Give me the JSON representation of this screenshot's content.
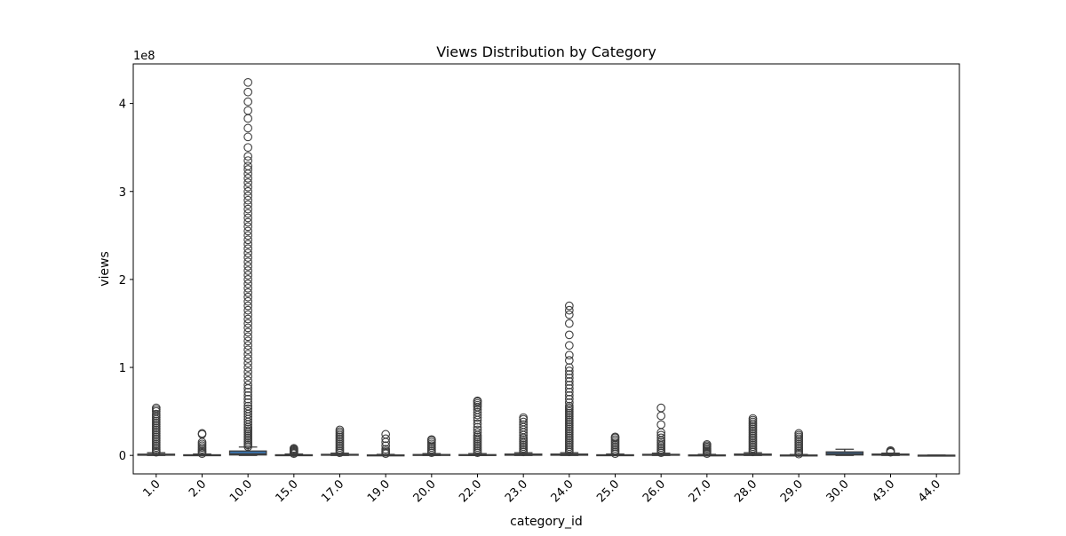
{
  "chart_data": {
    "type": "boxplot",
    "title": "Views Distribution by Category",
    "xlabel": "category_id",
    "ylabel": "views",
    "y_offset_label": "1e8",
    "y_scale": 100000000,
    "ylim": [
      -21000000,
      445000000
    ],
    "yticks": [
      0,
      100000000,
      200000000,
      300000000,
      400000000
    ],
    "ytick_labels": [
      "0",
      "1",
      "2",
      "3",
      "4"
    ],
    "grid": false,
    "legend": "none",
    "box_color": "#3a75b0",
    "categories": [
      "1.0",
      "2.0",
      "10.0",
      "15.0",
      "17.0",
      "19.0",
      "20.0",
      "22.0",
      "23.0",
      "24.0",
      "25.0",
      "26.0",
      "27.0",
      "28.0",
      "29.0",
      "30.0",
      "43.0",
      "44.0"
    ],
    "boxes": [
      {
        "category": "1.0",
        "whisker_low": 0,
        "q1": 200000,
        "median": 600000,
        "q3": 1400000,
        "whisker_high": 3000000,
        "outliers": [
          3500000,
          5000000,
          7000000,
          9000000,
          11000000,
          13000000,
          15000000,
          17000000,
          19000000,
          21000000,
          23000000,
          25000000,
          27000000,
          29000000,
          31000000,
          33000000,
          35000000,
          37000000,
          39000000,
          41000000,
          43000000,
          45000000,
          47000000,
          50000000,
          52000000,
          54000000
        ]
      },
      {
        "category": "2.0",
        "whisker_low": 0,
        "q1": 100000,
        "median": 300000,
        "q3": 700000,
        "whisker_high": 1500000,
        "outliers": [
          2000000,
          3500000,
          5000000,
          7000000,
          9000000,
          11000000,
          13000000,
          15000000,
          24000000,
          25000000
        ]
      },
      {
        "category": "10.0",
        "whisker_low": 0,
        "q1": 500000,
        "median": 1800000,
        "q3": 5000000,
        "whisker_high": 9500000,
        "outliers": [
          10000000,
          12000000,
          14000000,
          16000000,
          18000000,
          20000000,
          22000000,
          24000000,
          26000000,
          28000000,
          30000000,
          32000000,
          35000000,
          38000000,
          41000000,
          44000000,
          47000000,
          50000000,
          53000000,
          56000000,
          60000000,
          64000000,
          68000000,
          72000000,
          76000000,
          80000000,
          85000000,
          90000000,
          95000000,
          100000000,
          105000000,
          110000000,
          115000000,
          120000000,
          125000000,
          130000000,
          135000000,
          140000000,
          145000000,
          150000000,
          155000000,
          160000000,
          165000000,
          170000000,
          175000000,
          180000000,
          185000000,
          190000000,
          195000000,
          200000000,
          205000000,
          210000000,
          215000000,
          220000000,
          225000000,
          230000000,
          235000000,
          240000000,
          245000000,
          250000000,
          255000000,
          260000000,
          265000000,
          270000000,
          275000000,
          280000000,
          285000000,
          290000000,
          295000000,
          300000000,
          305000000,
          310000000,
          315000000,
          320000000,
          325000000,
          329000000,
          335000000,
          340000000,
          350000000,
          362000000,
          372000000,
          383000000,
          392000000,
          402000000,
          413000000,
          424000000
        ]
      },
      {
        "category": "15.0",
        "whisker_low": 0,
        "q1": 100000,
        "median": 300000,
        "q3": 700000,
        "whisker_high": 1500000,
        "outliers": [
          2000000,
          3000000,
          4000000,
          5000000,
          6000000,
          7000000,
          8000000
        ]
      },
      {
        "category": "17.0",
        "whisker_low": 0,
        "q1": 200000,
        "median": 500000,
        "q3": 1200000,
        "whisker_high": 2500000,
        "outliers": [
          3000000,
          5000000,
          7000000,
          9000000,
          11000000,
          13000000,
          15000000,
          17000000,
          19000000,
          21000000,
          23000000,
          25000000,
          27000000,
          29000000
        ]
      },
      {
        "category": "19.0",
        "whisker_low": 0,
        "q1": 50000,
        "median": 200000,
        "q3": 500000,
        "whisker_high": 1200000,
        "outliers": [
          2000000,
          3500000,
          5000000,
          7000000,
          11000000,
          15000000,
          19000000,
          24000000
        ]
      },
      {
        "category": "20.0",
        "whisker_low": 0,
        "q1": 100000,
        "median": 400000,
        "q3": 1000000,
        "whisker_high": 2000000,
        "outliers": [
          3000000,
          5000000,
          7000000,
          9000000,
          11000000,
          13000000,
          15000000,
          17000000,
          18000000
        ]
      },
      {
        "category": "22.0",
        "whisker_low": 0,
        "q1": 100000,
        "median": 300000,
        "q3": 900000,
        "whisker_high": 2000000,
        "outliers": [
          3000000,
          5000000,
          7000000,
          9000000,
          11000000,
          13000000,
          15000000,
          17000000,
          19000000,
          21000000,
          23000000,
          26000000,
          29000000,
          32000000,
          36000000,
          40000000,
          43000000,
          46000000,
          49000000,
          52000000,
          55000000,
          57000000,
          59000000,
          61000000,
          62000000
        ]
      },
      {
        "category": "23.0",
        "whisker_low": 0,
        "q1": 200000,
        "median": 600000,
        "q3": 1500000,
        "whisker_high": 3000000,
        "outliers": [
          4000000,
          6000000,
          8000000,
          10000000,
          12000000,
          14000000,
          16000000,
          18000000,
          20000000,
          23000000,
          26000000,
          29000000,
          32000000,
          35000000,
          38000000,
          41000000,
          43000000
        ]
      },
      {
        "category": "24.0",
        "whisker_low": 0,
        "q1": 200000,
        "median": 600000,
        "q3": 1500000,
        "whisker_high": 3000000,
        "outliers": [
          4000000,
          6000000,
          8000000,
          10000000,
          12000000,
          14000000,
          16000000,
          18000000,
          20000000,
          22000000,
          24000000,
          26000000,
          28000000,
          30000000,
          32000000,
          34000000,
          36000000,
          38000000,
          40000000,
          42000000,
          44000000,
          46000000,
          48000000,
          50000000,
          52000000,
          54000000,
          56000000,
          60000000,
          64000000,
          68000000,
          72000000,
          76000000,
          80000000,
          84000000,
          88000000,
          92000000,
          96000000,
          100000000,
          108000000,
          114000000,
          125000000,
          137000000,
          150000000,
          160000000,
          165000000,
          170000000
        ]
      },
      {
        "category": "25.0",
        "whisker_low": 0,
        "q1": 100000,
        "median": 300000,
        "q3": 700000,
        "whisker_high": 1500000,
        "outliers": [
          2000000,
          4000000,
          6000000,
          8000000,
          10000000,
          12000000,
          14000000,
          16000000,
          18000000,
          20000000,
          21000000
        ]
      },
      {
        "category": "26.0",
        "whisker_low": 0,
        "q1": 200000,
        "median": 500000,
        "q3": 1200000,
        "whisker_high": 2500000,
        "outliers": [
          3000000,
          5000000,
          7000000,
          9000000,
          11000000,
          13000000,
          15000000,
          17000000,
          20000000,
          23000000,
          26000000,
          35000000,
          45000000,
          54000000
        ]
      },
      {
        "category": "27.0",
        "whisker_low": 0,
        "q1": 50000,
        "median": 200000,
        "q3": 500000,
        "whisker_high": 1200000,
        "outliers": [
          2000000,
          3500000,
          5000000,
          6500000,
          8000000,
          9500000,
          11000000,
          12500000
        ]
      },
      {
        "category": "28.0",
        "whisker_low": 0,
        "q1": 200000,
        "median": 600000,
        "q3": 1500000,
        "whisker_high": 3000000,
        "outliers": [
          4000000,
          6000000,
          8000000,
          10000000,
          12000000,
          14000000,
          16000000,
          18000000,
          20000000,
          22000000,
          24000000,
          26000000,
          28000000,
          30000000,
          32000000,
          34000000,
          36000000,
          38000000,
          40000000,
          42000000
        ]
      },
      {
        "category": "29.0",
        "whisker_low": 0,
        "q1": 50000,
        "median": 150000,
        "q3": 400000,
        "whisker_high": 1000000,
        "outliers": [
          1500000,
          3000000,
          5000000,
          7000000,
          9000000,
          11000000,
          13000000,
          15000000,
          17000000,
          19000000,
          21000000,
          23000000,
          25000000
        ]
      },
      {
        "category": "30.0",
        "whisker_low": 0,
        "q1": 500000,
        "median": 2000000,
        "q3": 4000000,
        "whisker_high": 7000000,
        "outliers": []
      },
      {
        "category": "43.0",
        "whisker_low": 0,
        "q1": 300000,
        "median": 800000,
        "q3": 1500000,
        "whisker_high": 2500000,
        "outliers": [
          3500000,
          4500000,
          5500000
        ]
      },
      {
        "category": "44.0",
        "whisker_low": 0,
        "q1": 50000,
        "median": 100000,
        "q3": 200000,
        "whisker_high": 400000,
        "outliers": []
      }
    ]
  }
}
